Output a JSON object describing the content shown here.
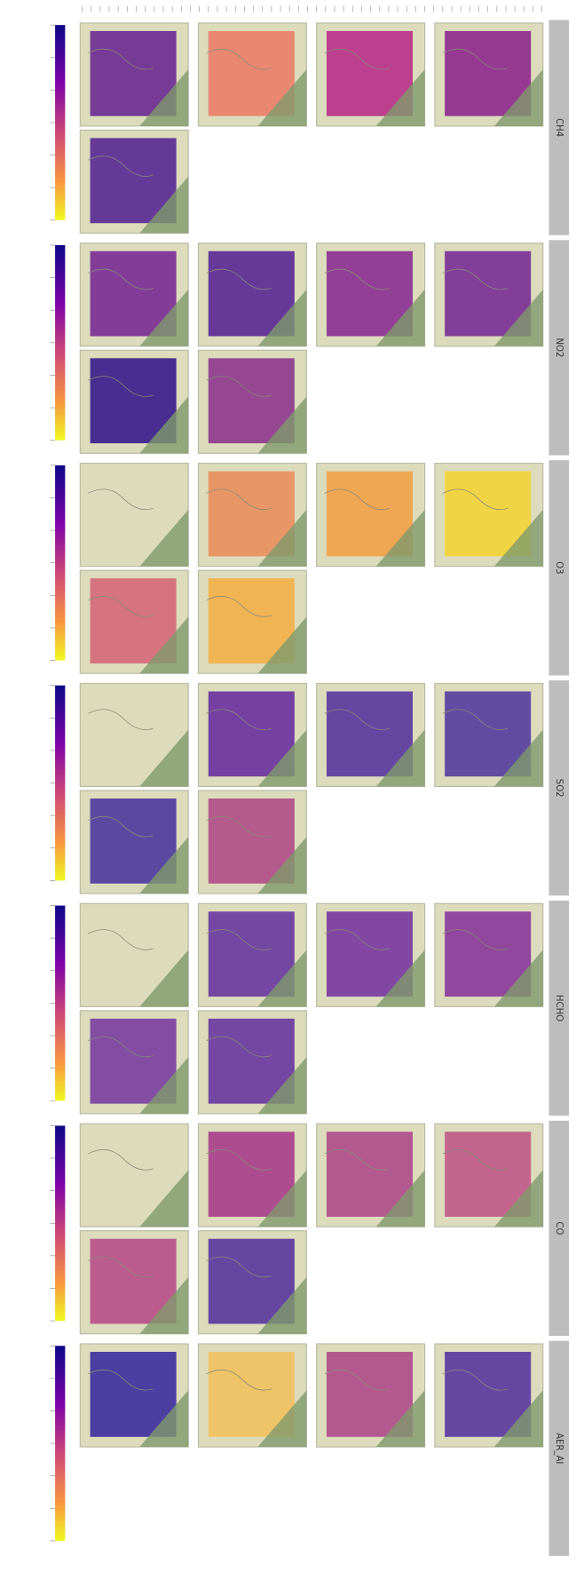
{
  "figure": {
    "strip_labels": [
      "CH4",
      "NO2",
      "O3",
      "SO2",
      "HCHO",
      "CO",
      "AER_AI"
    ]
  }
}
